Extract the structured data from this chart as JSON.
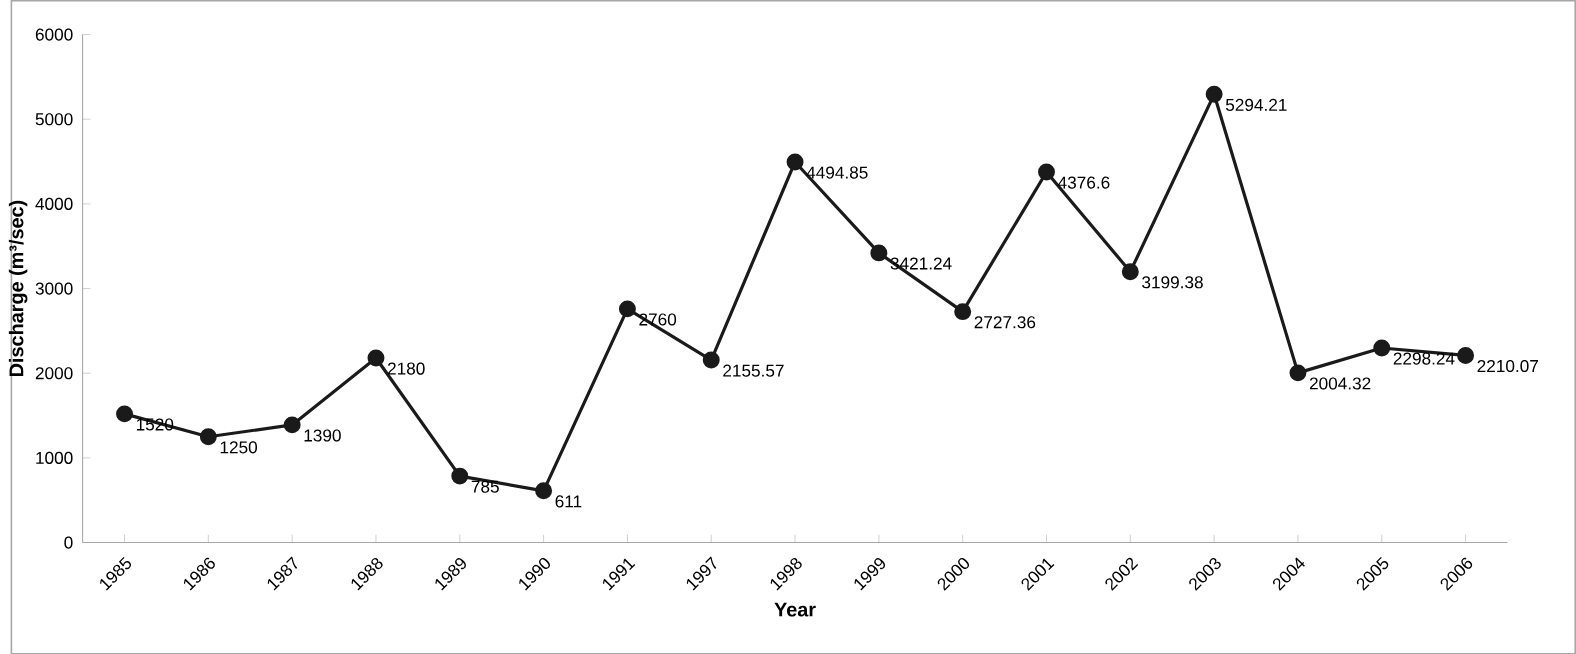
{
  "chart_data": {
    "type": "line",
    "xlabel": "Year",
    "ylabel": "Discharge (m³/sec)",
    "categories": [
      "1985",
      "1986",
      "1987",
      "1988",
      "1989",
      "1990",
      "1991",
      "1997",
      "1998",
      "1999",
      "2000",
      "2001",
      "2002",
      "2003",
      "2004",
      "2005",
      "2006"
    ],
    "series": [
      {
        "color": "#1a1a1a",
        "values": [
          1520,
          1250,
          1390,
          2180,
          785,
          611,
          2760,
          2155.57,
          4494.85,
          3421.24,
          2727.36,
          4376.6,
          3199.38,
          5294.21,
          2004.32,
          2298.24,
          2210.07
        ]
      }
    ],
    "ylim": [
      0,
      6000
    ],
    "yticks": [
      0,
      1000,
      2000,
      3000,
      4000,
      5000,
      6000
    ],
    "data_labels": true,
    "marker": "circle",
    "grid": false
  }
}
